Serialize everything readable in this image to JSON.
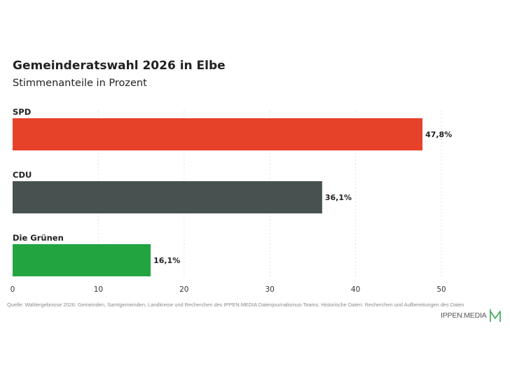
{
  "chart_data": {
    "type": "bar",
    "orientation": "horizontal",
    "title": "Gemeinderatswahl 2026 in Elbe",
    "subtitle": "Stimmenanteile in Prozent",
    "categories": [
      "SPD",
      "CDU",
      "Die Grünen"
    ],
    "values": [
      47.8,
      36.1,
      16.1
    ],
    "value_labels": [
      "47,8%",
      "36,1%",
      "16,1%"
    ],
    "colors": [
      "#e64129",
      "#465150",
      "#22a541"
    ],
    "xlim": [
      0,
      50
    ],
    "ticks": [
      0,
      10,
      20,
      30,
      40,
      50
    ],
    "tick_labels": [
      "0",
      "10",
      "20",
      "30",
      "40",
      "50"
    ],
    "grid": true,
    "legend": "none"
  },
  "footer": {
    "source": "Quelle: Wahlergebnisse 2026: Gemeinden, Samtgemeinden, Landkreise und Recherchen des IPPEN.MEDIA Datenjournalismus-Teams. Historische Daten: Recherchen und Aufbereitungen des Daten",
    "logo_text": "IPPEN.MEDIA",
    "logo_color": "#3aa655"
  }
}
